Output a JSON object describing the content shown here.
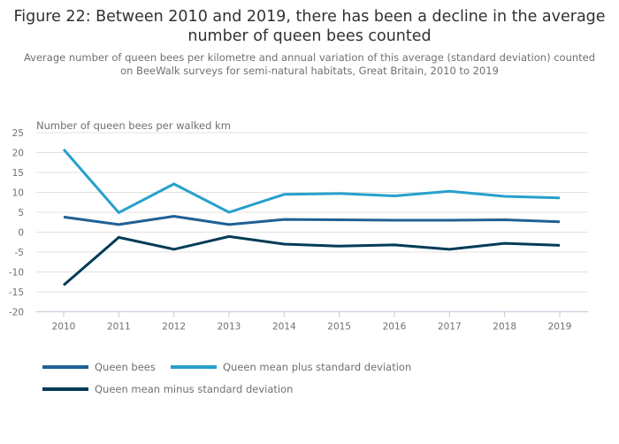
{
  "title": "Figure 22: Between 2010 and 2019, there has been a decline in the average number of queen bees counted",
  "subtitle": "Average number of queen bees per kilometre and annual variation of this average (standard deviation) counted on BeeWalk surveys for semi-natural habitats, Great Britain, 2010 to 2019",
  "chart_data": {
    "type": "line",
    "title": "Figure 22: Between 2010 and 2019, there has been a decline in the average number of queen bees counted",
    "subtitle": "Average number of queen bees per kilometre and annual variation of this average (standard deviation) counted on BeeWalk surveys for semi-natural habitats, Great Britain, 2010 to 2019",
    "xlabel": "",
    "ylabel": "Number of queen bees per walked km",
    "x": [
      "2010",
      "2011",
      "2012",
      "2013",
      "2014",
      "2015",
      "2016",
      "2017",
      "2018",
      "2019"
    ],
    "ylim": [
      -20,
      25
    ],
    "yticks": [
      25,
      20,
      15,
      10,
      5,
      0,
      -5,
      -10,
      -15,
      -20
    ],
    "grid": true,
    "legend_position": "bottom-left",
    "series": [
      {
        "name": "Queen bees",
        "color": "#206095",
        "values": [
          3.8,
          1.9,
          4.0,
          1.9,
          3.2,
          3.1,
          3.0,
          3.0,
          3.1,
          2.6
        ]
      },
      {
        "name": "Queen mean plus standard deviation",
        "color": "#27a0cc",
        "values": [
          20.8,
          4.9,
          12.1,
          5.0,
          9.5,
          9.7,
          9.1,
          10.3,
          9.0,
          8.6
        ]
      },
      {
        "name": "Queen mean minus standard deviation",
        "color": "#003c57",
        "values": [
          -13.3,
          -1.3,
          -4.3,
          -1.1,
          -3.0,
          -3.5,
          -3.2,
          -4.3,
          -2.8,
          -3.3
        ]
      }
    ]
  }
}
